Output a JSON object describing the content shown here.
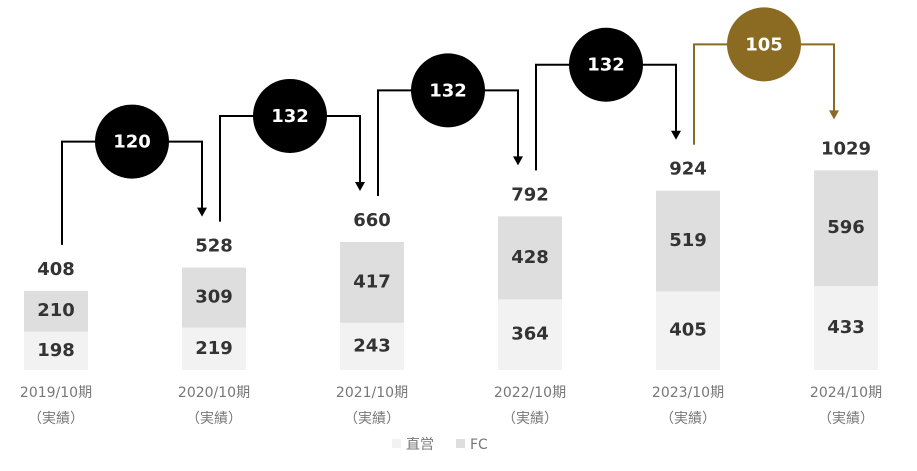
{
  "chart_data": {
    "type": "stacked_bar",
    "categories": [
      "2019/10期",
      "2020/10期",
      "2021/10期",
      "2022/10期",
      "2023/10期",
      "2024/10期"
    ],
    "category_notes": [
      "（実績）",
      "（実績）",
      "（実績）",
      "（実績）",
      "（実績）",
      "（実績）"
    ],
    "series": [
      {
        "name": "直営",
        "color": "#f2f2f2",
        "values": [
          198,
          219,
          243,
          364,
          405,
          433
        ]
      },
      {
        "name": "FC",
        "color": "#dedede",
        "values": [
          210,
          309,
          417,
          428,
          519,
          596
        ]
      }
    ],
    "totals": [
      408,
      528,
      660,
      792,
      924,
      1029
    ],
    "increments": [
      120,
      132,
      132,
      132,
      105
    ],
    "increment_colors": [
      "#000000",
      "#000000",
      "#000000",
      "#000000",
      "#8b6a22"
    ],
    "legend": "bottom"
  }
}
